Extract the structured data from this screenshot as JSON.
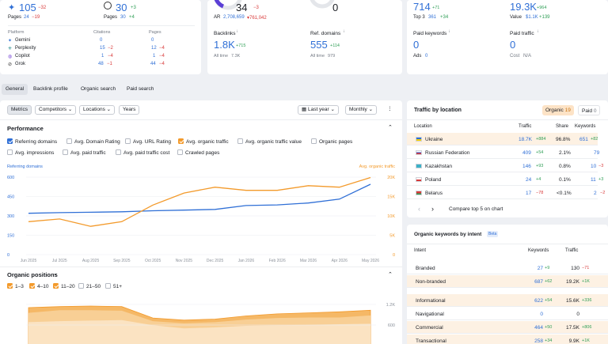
{
  "colors": {
    "blue": "#2f6fd6",
    "orange": "#f39a2b",
    "green": "#2e9e55",
    "red": "#d93a3a",
    "highlight": "#fdf1e3"
  },
  "ai_card": {
    "gemini_value": "105",
    "gemini_delta": "−32",
    "gemini_pages_label": "Pages",
    "gemini_pages": "24",
    "gemini_pages_delta": "−19",
    "chatgpt_value": "30",
    "chatgpt_delta": "+3",
    "chatgpt_pages_label": "Pages",
    "chatgpt_pages": "30",
    "chatgpt_pages_delta": "+4",
    "headers": {
      "platform": "Platform",
      "citations": "Citations",
      "pages": "Pages"
    },
    "rows": [
      {
        "icon": "gemini-icon",
        "name": "Gemini",
        "citations": "0",
        "cit_delta": "",
        "pages": "0",
        "pages_delta": ""
      },
      {
        "icon": "perplexity-icon",
        "name": "Perplexity",
        "citations": "15",
        "cit_delta": "−2",
        "pages": "12",
        "pages_delta": "−4"
      },
      {
        "icon": "copilot-icon",
        "name": "Copilot",
        "citations": "1",
        "cit_delta": "−4",
        "pages": "1",
        "pages_delta": "−4"
      },
      {
        "icon": "grok-icon",
        "name": "Grok",
        "citations": "48",
        "cit_delta": "−1",
        "pages": "44",
        "pages_delta": "−4"
      }
    ]
  },
  "metrics_card": {
    "ar_value": "34",
    "ar_delta": "−3",
    "ar_label": "AR",
    "ar_rank": "2,708,659",
    "ar_rank_delta": "▾761,042",
    "zero_value": "0",
    "backlinks_label": "Backlinks",
    "backlinks_value": "1.8K",
    "backlinks_delta": "+715",
    "backlinks_alltime_label": "All time",
    "backlinks_alltime": "7.3K",
    "refdomains_label": "Ref. domains",
    "refdomains_value": "555",
    "refdomains_delta": "+114",
    "refdomains_alltime_label": "All time",
    "refdomains_alltime": "979"
  },
  "organic_card": {
    "keywords_value": "714",
    "keywords_delta": "+71",
    "top3_label": "Top 3",
    "top3_value": "361",
    "top3_delta": "+34",
    "traffic_value": "19.3K",
    "traffic_delta": "+964",
    "value_label": "Value",
    "value_value": "$1.1K",
    "value_delta": "+139",
    "paid_keywords_label": "Paid keywords",
    "paid_keywords_value": "0",
    "ads_label": "Ads",
    "ads_value": "0",
    "paid_traffic_label": "Paid traffic",
    "paid_traffic_value": "0",
    "cost_label": "Cost",
    "cost_value": "N/A"
  },
  "tabs": [
    "General",
    "Backlink profile",
    "Organic search",
    "Paid search"
  ],
  "toolbar": {
    "metrics": "Metrics",
    "competitors": "Competitors",
    "locations": "Locations",
    "years": "Years",
    "period": "Last year",
    "granularity": "Monthly",
    "more": "⋮"
  },
  "performance": {
    "title": "Performance",
    "checkboxes": [
      {
        "label": "Referring domains",
        "state": "blue"
      },
      {
        "label": "Avg. Domain Rating",
        "state": "off"
      },
      {
        "label": "Avg. URL Rating",
        "state": "off"
      },
      {
        "label": "Avg. organic traffic",
        "state": "orange"
      },
      {
        "label": "Avg. organic traffic value",
        "state": "off"
      },
      {
        "label": "Organic pages",
        "state": "off"
      },
      {
        "label": "Avg. impressions",
        "state": "off"
      },
      {
        "label": "Avg. paid traffic",
        "state": "off"
      },
      {
        "label": "Avg. paid traffic cost",
        "state": "off"
      },
      {
        "label": "Crawled pages",
        "state": "off"
      }
    ]
  },
  "chart_data": [
    {
      "type": "line",
      "x": [
        "Jun 2025",
        "Jul 2025",
        "Aug 2025",
        "Sep 2025",
        "Oct 2025",
        "Nov 2025",
        "Dec 2025",
        "Jan 2026",
        "Feb 2026",
        "Mar 2026",
        "Apr 2026",
        "May 2026"
      ],
      "y_left_label": "Referring domains",
      "y_right_label": "Avg. organic traffic",
      "y_left_ticks": [
        "600",
        "450",
        "300",
        "150",
        "0"
      ],
      "y_left_lim": [
        0,
        600
      ],
      "y_right_ticks": [
        "20K",
        "15K",
        "10K",
        "5K",
        "0"
      ],
      "y_right_lim": [
        0,
        20000
      ],
      "series": [
        {
          "name": "Referring domains",
          "axis": "left",
          "color": "#2f6fd6",
          "values": [
            320,
            325,
            328,
            332,
            340,
            345,
            350,
            380,
            385,
            400,
            430,
            545
          ]
        },
        {
          "name": "Avg. organic traffic",
          "axis": "right",
          "color": "#f39a2b",
          "values": [
            8500,
            9200,
            7300,
            8500,
            12800,
            15900,
            17400,
            16600,
            16600,
            17800,
            17400,
            19900
          ]
        }
      ]
    },
    {
      "type": "area",
      "x": [
        "Jun 2025",
        "Jul 2025",
        "Aug 2025",
        "Sep 2025",
        "Oct 2025",
        "Nov 2025",
        "Dec 2025",
        "Jan 2026",
        "Feb 2026",
        "Mar 2026",
        "Apr 2026",
        "May 2026"
      ],
      "y_right_ticks": [
        "1.2K",
        "600"
      ],
      "y_lim": [
        0,
        1400
      ],
      "series": [
        {
          "name": "1–3",
          "values": [
            420,
            440,
            450,
            460,
            360,
            300,
            320,
            350,
            360,
            370,
            380,
            390
          ]
        },
        {
          "name": "4–10",
          "values": [
            600,
            650,
            650,
            640,
            440,
            400,
            420,
            470,
            500,
            510,
            510,
            550
          ]
        },
        {
          "name": "11–20",
          "values": [
            700,
            720,
            730,
            720,
            500,
            460,
            480,
            540,
            580,
            600,
            620,
            650
          ]
        }
      ]
    }
  ],
  "organic_positions": {
    "title": "Organic positions",
    "checkboxes": [
      {
        "label": "1–3",
        "state": "orange"
      },
      {
        "label": "4–10",
        "state": "orange"
      },
      {
        "label": "11–20",
        "state": "orange"
      },
      {
        "label": "21–50",
        "state": "off"
      },
      {
        "label": "51+",
        "state": "off"
      }
    ]
  },
  "traffic_by_location": {
    "title": "Traffic by location",
    "toggle_organic": "Organic",
    "toggle_organic_count": "19",
    "toggle_paid": "Paid",
    "toggle_paid_count": "0",
    "headers": {
      "location": "Location",
      "traffic": "Traffic",
      "share": "Share",
      "keywords": "Keywords"
    },
    "rows": [
      {
        "country": "Ukraine",
        "traffic": "18.7K",
        "traffic_delta": "+884",
        "share": "96.8%",
        "keywords": "651",
        "kw_delta": "+82",
        "highlight": true
      },
      {
        "country": "Russian Federation",
        "traffic": "409",
        "traffic_delta": "+54",
        "share": "2.1%",
        "keywords": "79",
        "kw_delta": ""
      },
      {
        "country": "Kazakhstan",
        "traffic": "146",
        "traffic_delta": "+93",
        "share": "0.8%",
        "keywords": "10",
        "kw_delta": "−3"
      },
      {
        "country": "Poland",
        "traffic": "24",
        "traffic_delta": "+4",
        "share": "0.1%",
        "keywords": "11",
        "kw_delta": "+3"
      },
      {
        "country": "Belarus",
        "traffic": "17",
        "traffic_delta": "−78",
        "share": "<0.1%",
        "keywords": "2",
        "kw_delta": "−2"
      }
    ],
    "compare_label": "Compare top 5 on chart"
  },
  "keywords_by_intent": {
    "title": "Organic keywords by intent",
    "badge": "Beta",
    "headers": {
      "intent": "Intent",
      "keywords": "Keywords",
      "traffic": "Traffic"
    },
    "rows": [
      {
        "intent": "Branded",
        "keywords": "27",
        "kw_delta": "+9",
        "traffic": "130",
        "tr_delta": "−71",
        "highlight": false
      },
      {
        "intent": "Non-branded",
        "keywords": "687",
        "kw_delta": "+62",
        "traffic": "19.2K",
        "tr_delta": "+1K",
        "highlight": true
      },
      {
        "intent": "Informational",
        "keywords": "622",
        "kw_delta": "+54",
        "traffic": "15.6K",
        "tr_delta": "+336",
        "highlight": true
      },
      {
        "intent": "Navigational",
        "keywords": "0",
        "kw_delta": "",
        "traffic": "0",
        "tr_delta": "",
        "highlight": false
      },
      {
        "intent": "Commercial",
        "keywords": "464",
        "kw_delta": "+50",
        "traffic": "17.5K",
        "tr_delta": "+806",
        "highlight": true
      },
      {
        "intent": "Transactional",
        "keywords": "258",
        "kw_delta": "+34",
        "traffic": "9.9K",
        "tr_delta": "+1K",
        "highlight": true
      }
    ]
  }
}
